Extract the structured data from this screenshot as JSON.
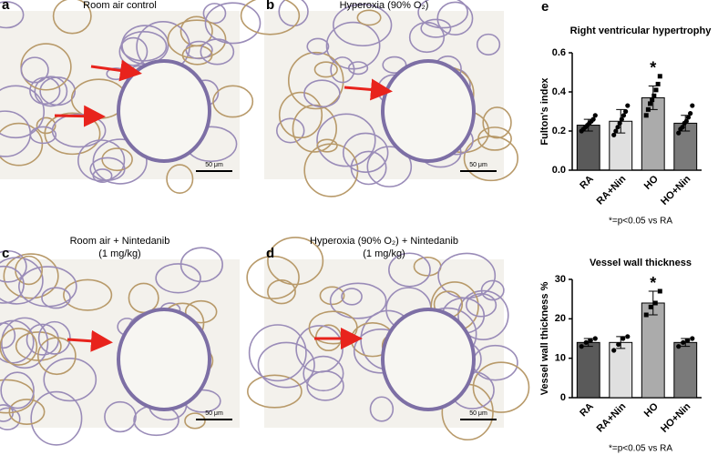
{
  "panels": [
    {
      "label": "a",
      "caption": "Room air control",
      "scale_bar": "50 μm"
    },
    {
      "label": "b",
      "caption": "Hyperoxia (90% O₂)",
      "scale_bar": "50 μm"
    },
    {
      "label": "c",
      "caption": "Room air + Nintedanib",
      "caption2": "(1 mg/kg)",
      "scale_bar": "50 μm"
    },
    {
      "label": "d",
      "caption": "Hyperoxia (90% O₂) + Nintedanib",
      "caption2": "(1 mg/kg)",
      "scale_bar": "50 μm"
    }
  ],
  "chart_label": "e",
  "chart_data": [
    {
      "type": "bar",
      "title": "Right ventricular hypertrophy",
      "ylabel": "Fulton's index",
      "categories": [
        "RA",
        "RA+Nin",
        "HO",
        "HO+Nin"
      ],
      "values": [
        0.23,
        0.25,
        0.37,
        0.24
      ],
      "errors": [
        0.03,
        0.06,
        0.06,
        0.04
      ],
      "points": [
        [
          0.2,
          0.21,
          0.22,
          0.23,
          0.24,
          0.25,
          0.26,
          0.28
        ],
        [
          0.18,
          0.2,
          0.22,
          0.24,
          0.26,
          0.28,
          0.3,
          0.33
        ],
        [
          0.28,
          0.31,
          0.34,
          0.36,
          0.38,
          0.41,
          0.44,
          0.48
        ],
        [
          0.19,
          0.21,
          0.22,
          0.24,
          0.25,
          0.27,
          0.29,
          0.33
        ]
      ],
      "colors": [
        "#5a5a5a",
        "#e0e0e0",
        "#ababab",
        "#7a7a7a"
      ],
      "ylim": [
        0,
        0.6
      ],
      "yticks": [
        {
          "value": 0,
          "label": "0.0"
        },
        0.2,
        0.4,
        0.6
      ],
      "annotation": "*",
      "annotation_category": "HO",
      "footnote": "*=p<0.05 vs RA"
    },
    {
      "type": "bar",
      "title": "Vessel wall thickness",
      "ylabel": "Vessel wall thickness %",
      "categories": [
        "RA",
        "RA+Nin",
        "HO",
        "HO+Nin"
      ],
      "values": [
        14,
        14,
        24,
        14
      ],
      "errors": [
        1,
        1.5,
        3,
        1
      ],
      "points": [
        [
          13,
          14,
          14.5,
          15
        ],
        [
          12,
          13.5,
          15,
          15.5
        ],
        [
          21,
          23,
          24,
          27
        ],
        [
          13,
          14,
          14.5,
          15
        ]
      ],
      "colors": [
        "#5a5a5a",
        "#e0e0e0",
        "#ababab",
        "#7a7a7a"
      ],
      "ylim": [
        0,
        30
      ],
      "yticks": [
        0,
        10,
        20,
        30
      ],
      "annotation": "*",
      "annotation_category": "HO",
      "footnote": "*=p<0.05 vs RA"
    }
  ]
}
